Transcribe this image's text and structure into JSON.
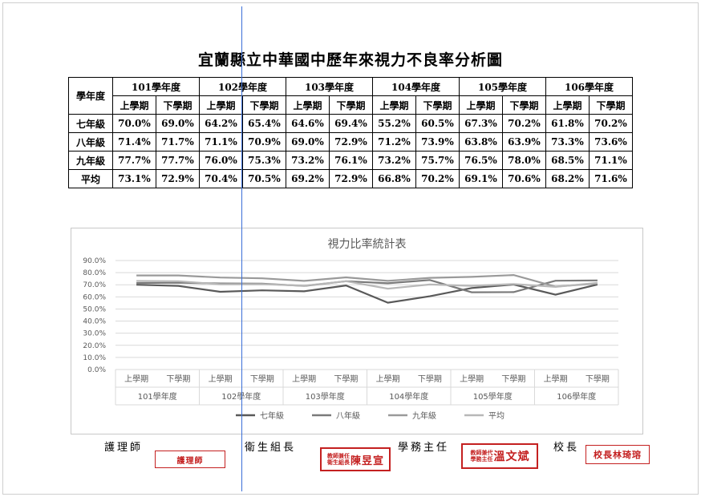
{
  "title": "宜蘭縣立中華國中歷年來視力不良率分析圖",
  "table": {
    "corner_label": "學年度",
    "years": [
      "101學年度",
      "102學年度",
      "103學年度",
      "104學年度",
      "105學年度",
      "106學年度"
    ],
    "terms": [
      "上學期",
      "下學期"
    ],
    "rows": [
      {
        "label": "七年級",
        "values": [
          "70.0%",
          "69.0%",
          "64.2%",
          "65.4%",
          "64.6%",
          "69.4%",
          "55.2%",
          "60.5%",
          "67.3%",
          "70.2%",
          "61.8%",
          "70.2%"
        ]
      },
      {
        "label": "八年級",
        "values": [
          "71.4%",
          "71.7%",
          "71.1%",
          "70.9%",
          "69.0%",
          "72.9%",
          "71.2%",
          "73.9%",
          "63.8%",
          "63.9%",
          "73.3%",
          "73.6%"
        ]
      },
      {
        "label": "九年級",
        "values": [
          "77.7%",
          "77.7%",
          "76.0%",
          "75.3%",
          "73.2%",
          "76.1%",
          "73.2%",
          "75.7%",
          "76.5%",
          "78.0%",
          "68.5%",
          "71.1%"
        ]
      },
      {
        "label": "平均",
        "values": [
          "73.1%",
          "72.9%",
          "70.4%",
          "70.5%",
          "69.2%",
          "72.9%",
          "66.8%",
          "70.2%",
          "69.1%",
          "70.6%",
          "68.2%",
          "71.6%"
        ]
      }
    ]
  },
  "chart_data": {
    "type": "line",
    "title": "視力比率統計表",
    "y_tick_labels": [
      "0.0%",
      "10.0%",
      "20.0%",
      "30.0%",
      "40.0%",
      "50.0%",
      "60.0%",
      "70.0%",
      "80.0%",
      "90.0%"
    ],
    "ylim": [
      0,
      90
    ],
    "x_term_labels": [
      "上學期",
      "下學期",
      "上學期",
      "下學期",
      "上學期",
      "下學期",
      "上學期",
      "下學期",
      "上學期",
      "下學期",
      "上學期",
      "下學期"
    ],
    "x_year_labels": [
      "101學年度",
      "102學年度",
      "103學年度",
      "104學年度",
      "105學年度",
      "106學年度"
    ],
    "series": [
      {
        "name": "七年級",
        "color": "#595959",
        "values": [
          70.0,
          69.0,
          64.2,
          65.4,
          64.6,
          69.4,
          55.2,
          60.5,
          67.3,
          70.2,
          61.8,
          70.2
        ]
      },
      {
        "name": "八年級",
        "color": "#7a7a7a",
        "values": [
          71.4,
          71.7,
          71.1,
          70.9,
          69.0,
          72.9,
          71.2,
          73.9,
          63.8,
          63.9,
          73.3,
          73.6
        ]
      },
      {
        "name": "九年級",
        "color": "#9a9a9a",
        "values": [
          77.7,
          77.7,
          76.0,
          75.3,
          73.2,
          76.1,
          73.2,
          75.7,
          76.5,
          78.0,
          68.5,
          71.1
        ]
      },
      {
        "name": "平均",
        "color": "#b8b8b8",
        "values": [
          73.1,
          72.9,
          70.4,
          70.5,
          69.2,
          72.9,
          66.8,
          70.2,
          69.1,
          70.6,
          68.2,
          71.6
        ]
      }
    ],
    "legend_position": "bottom",
    "grid": true
  },
  "signatures": {
    "nurse_label": "護理師",
    "health_label": "衛生組長",
    "academic_label": "學務主任",
    "principal_label": "校長",
    "stamp_nurse_text": "護理師",
    "stamp_health_small": "教師兼任衛生組長",
    "stamp_health_name": "陳昱宣",
    "stamp_academic_small": "教師兼代學務主任",
    "stamp_academic_name": "溫文斌",
    "stamp_principal_text": "校長林琦瑢"
  }
}
